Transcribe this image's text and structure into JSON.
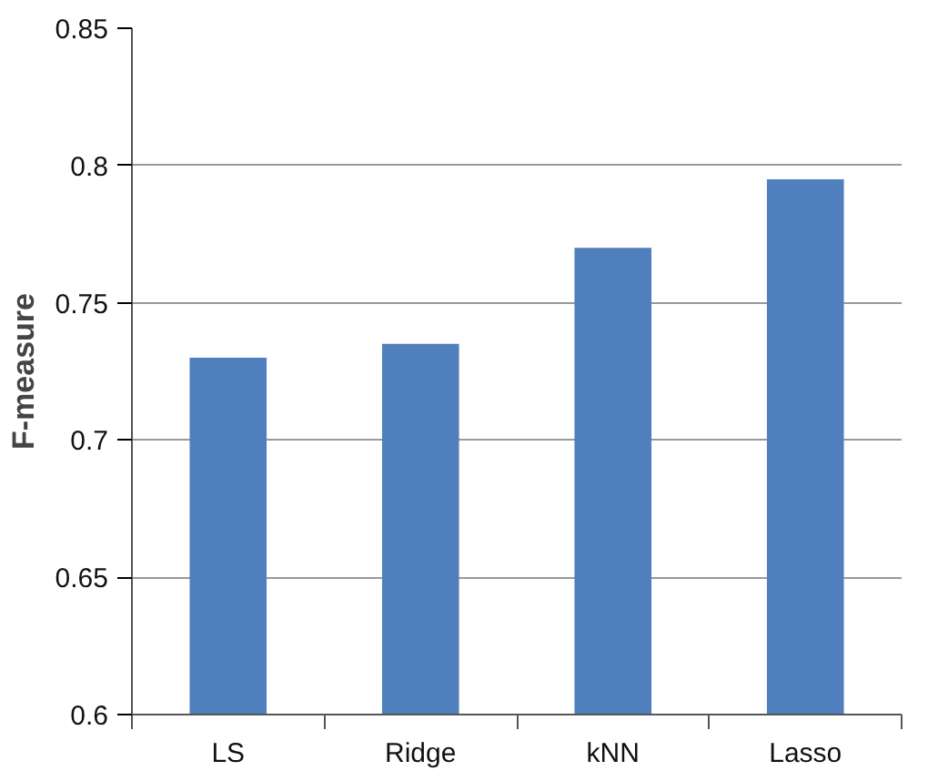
{
  "chart_data": {
    "type": "bar",
    "ylabel": "F-measure",
    "categories": [
      "LS",
      "Ridge",
      "kNN",
      "Lasso"
    ],
    "values": [
      0.73,
      0.735,
      0.77,
      0.795
    ],
    "color": "#4f7fbd",
    "ylim": [
      0.6,
      0.85
    ],
    "yticks": [
      0.6,
      0.65,
      0.7,
      0.75,
      0.8,
      0.85
    ],
    "grid": "y"
  }
}
